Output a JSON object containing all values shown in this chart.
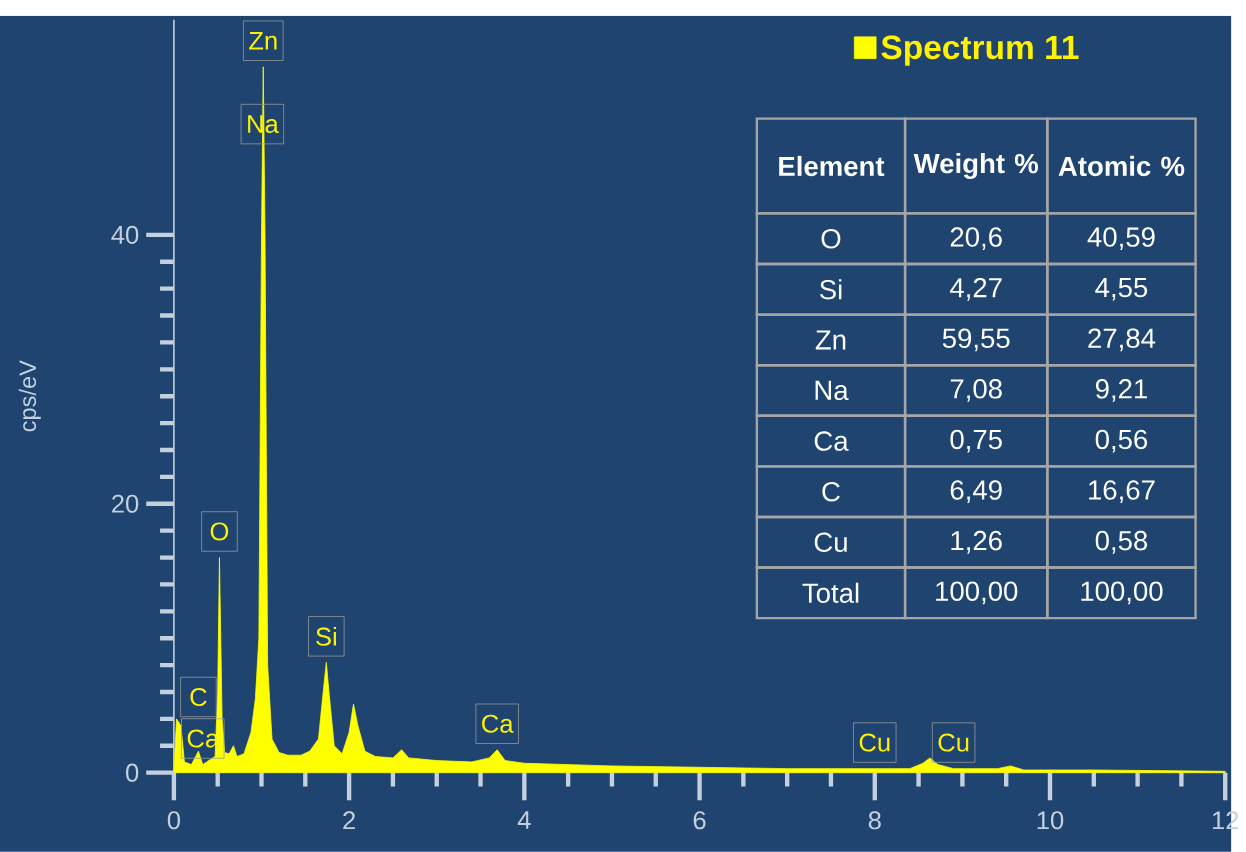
{
  "chart_data": {
    "type": "area",
    "ylabel": "cps/eV",
    "xlim": [
      0,
      12
    ],
    "ylim": [
      0,
      56
    ],
    "xticks": [
      0,
      2,
      4,
      6,
      8,
      10,
      12
    ],
    "yticks": [
      0,
      20,
      40
    ],
    "legend": "top right",
    "series": [
      {
        "name": "Spectrum 11",
        "color": "#ffff00",
        "x": [
          0,
          0.03,
          0.08,
          0.12,
          0.2,
          0.28,
          0.33,
          0.42,
          0.47,
          0.5,
          0.52,
          0.55,
          0.58,
          0.63,
          0.68,
          0.72,
          0.8,
          0.88,
          0.93,
          0.97,
          1.0,
          1.02,
          1.04,
          1.07,
          1.12,
          1.2,
          1.3,
          1.45,
          1.55,
          1.65,
          1.72,
          1.74,
          1.77,
          1.83,
          1.92,
          2.0,
          2.05,
          2.1,
          2.18,
          2.3,
          2.5,
          2.6,
          2.68,
          3.0,
          3.4,
          3.6,
          3.69,
          3.78,
          4.0,
          5,
          6,
          7,
          8,
          8.4,
          8.55,
          8.63,
          8.72,
          8.9,
          9.4,
          9.55,
          9.7,
          10.5,
          12
        ],
        "values": [
          0,
          4.0,
          3.5,
          0.8,
          0.6,
          1.6,
          0.6,
          1.0,
          1.2,
          6,
          16.0,
          4,
          1.5,
          1.4,
          2.0,
          1.2,
          1.4,
          3,
          5.5,
          10,
          40,
          52.5,
          40,
          8,
          2.5,
          1.5,
          1.3,
          1.3,
          1.6,
          2.5,
          7,
          8.2,
          6,
          2,
          1.4,
          3,
          5.1,
          3.5,
          1.6,
          1.2,
          1.1,
          1.7,
          1.1,
          0.9,
          0.8,
          1.1,
          1.7,
          0.9,
          0.7,
          0.5,
          0.4,
          0.3,
          0.3,
          0.3,
          0.7,
          1.1,
          0.6,
          0.3,
          0.3,
          0.5,
          0.2,
          0.2,
          0.1
        ]
      }
    ],
    "annotations": [
      {
        "text": "Zn",
        "x": 1.02,
        "y": 52.5
      },
      {
        "text": "Na",
        "x": 1.01,
        "y": 46.3
      },
      {
        "text": "O",
        "x": 0.52,
        "y": 16.0
      },
      {
        "text": "Ca",
        "x": 0.33,
        "y": 0.6
      },
      {
        "text": "C",
        "x": 0.28,
        "y": 1.6
      },
      {
        "text": "Si",
        "x": 1.74,
        "y": 8.2
      },
      {
        "text": "Ca",
        "x": 3.69,
        "y": 1.7
      },
      {
        "text": "Cu",
        "x": 8.0,
        "y": 0.3
      },
      {
        "text": "Cu",
        "x": 8.9,
        "y": 0.3
      },
      "Element",
      "Weight %",
      "Atomic %",
      "O",
      "20,6",
      "40,59",
      "Si",
      "4,27",
      "4,55",
      "Zn",
      "59,55",
      "27,84",
      "Na",
      "7,08",
      "9,21",
      "Ca",
      "0,75",
      "0,56",
      "C",
      "6,49",
      "16,67",
      "Cu",
      "1,26",
      "0,58",
      "Total",
      "100,00",
      "100,00"
    ]
  }
}
